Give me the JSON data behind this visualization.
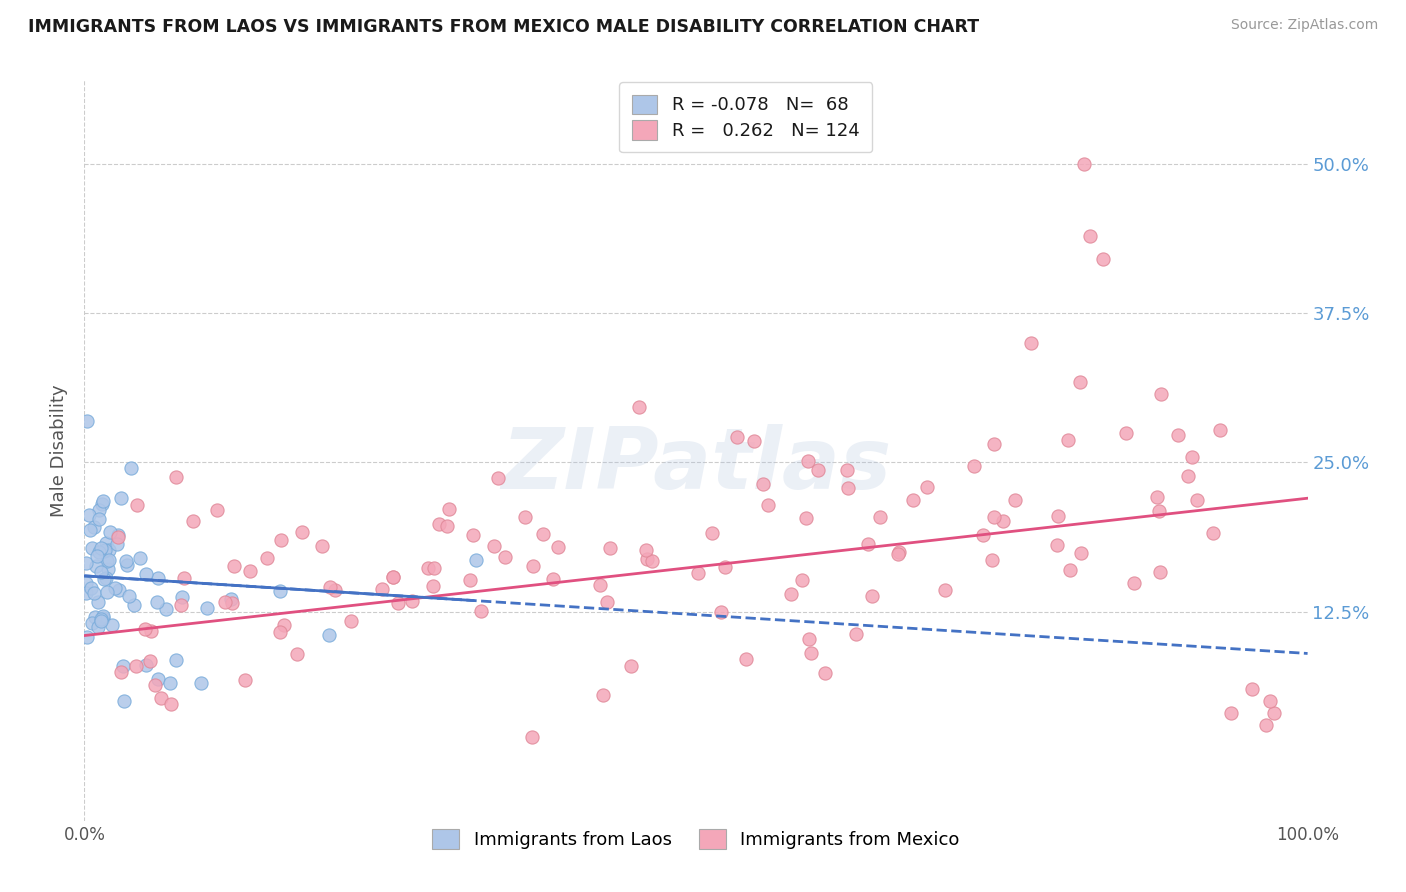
{
  "title": "IMMIGRANTS FROM LAOS VS IMMIGRANTS FROM MEXICO MALE DISABILITY CORRELATION CHART",
  "source": "Source: ZipAtlas.com",
  "ylabel": "Male Disability",
  "R_laos": -0.078,
  "N_laos": 68,
  "R_mexico": 0.262,
  "N_mexico": 124,
  "color_laos": "#aec6e8",
  "color_mexico": "#f4a7b9",
  "color_laos_edge": "#7aacdb",
  "color_mexico_edge": "#e08898",
  "line_color_laos": "#4472c4",
  "line_color_mexico": "#e05080",
  "ytick_color": "#5b9bd5",
  "xlim": [
    0.0,
    1.0
  ],
  "ylim": [
    -0.05,
    0.57
  ],
  "ytick_vals": [
    0.125,
    0.25,
    0.375,
    0.5
  ],
  "ytick_labels": [
    "12.5%",
    "25.0%",
    "37.5%",
    "50.0%"
  ],
  "xtick_labels": [
    "0.0%",
    "100.0%"
  ],
  "xtick_vals": [
    0.0,
    1.0
  ],
  "watermark_text": "ZIPatlas",
  "legend_label_laos": "Immigrants from Laos",
  "legend_label_mexico": "Immigrants from Mexico"
}
